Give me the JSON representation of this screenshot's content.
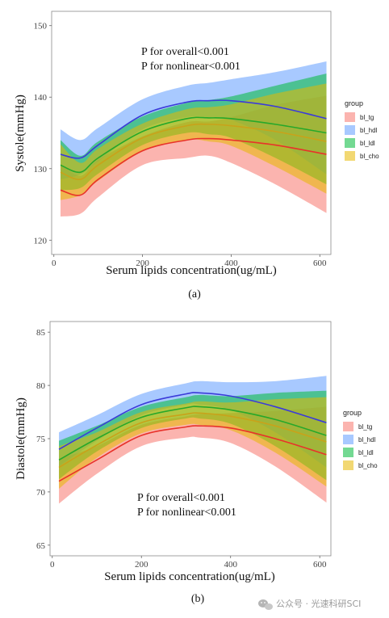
{
  "chart_data": [
    {
      "type": "line",
      "panel_label": "(a)",
      "ylabel": "Systole(mmHg)",
      "xlabel": "Serum lipids concentration(ug/mL)",
      "xlim": [
        -5,
        625
      ],
      "ylim": [
        118,
        152
      ],
      "xticks": [
        0,
        200,
        400,
        600
      ],
      "yticks": [
        120,
        130,
        140,
        150
      ],
      "annotations": [
        "P for overall<0.001",
        "P for nonlinear<0.001"
      ],
      "legend": {
        "title": "group",
        "position": "right"
      },
      "grid": false,
      "series": [
        {
          "name": "bl_tg",
          "color": "#f8766d",
          "x": [
            15,
            60,
            100,
            200,
            300,
            350,
            400,
            500,
            615
          ],
          "y": [
            127,
            126.3,
            128.5,
            132.5,
            134,
            134.2,
            134,
            133.3,
            132
          ],
          "lower": [
            123.3,
            123.7,
            126,
            130.5,
            131.5,
            131.8,
            130.8,
            127.8,
            123.8
          ],
          "upper": [
            130.7,
            129,
            131.2,
            134.5,
            136.5,
            136.6,
            137.2,
            138.9,
            140.2
          ]
        },
        {
          "name": "bl_hdl",
          "color": "#619cff",
          "x": [
            15,
            60,
            100,
            200,
            300,
            350,
            400,
            500,
            615
          ],
          "y": [
            132,
            131.5,
            133.3,
            137.5,
            139.3,
            139.5,
            139.5,
            138.7,
            137
          ],
          "lower": [
            128.5,
            129.2,
            131,
            135.5,
            137.2,
            137.2,
            136.8,
            134,
            129.2
          ],
          "upper": [
            135.5,
            134,
            135.7,
            139.7,
            141.6,
            142,
            142.5,
            143.5,
            145
          ]
        },
        {
          "name": "bl_ldl",
          "color": "#00ba38",
          "x": [
            15,
            60,
            100,
            200,
            300,
            350,
            400,
            500,
            615
          ],
          "y": [
            130.5,
            129.5,
            131.5,
            135.2,
            137,
            137.1,
            137,
            136.2,
            135
          ],
          "lower": [
            127,
            127.3,
            129.3,
            133.3,
            135,
            134.8,
            134.3,
            131.5,
            127.8
          ],
          "upper": [
            134,
            131.8,
            133.8,
            137.3,
            139.2,
            139.6,
            140.1,
            141.6,
            143.3
          ]
        },
        {
          "name": "bl_cho",
          "color": "#e7b800",
          "x": [
            15,
            60,
            100,
            200,
            300,
            350,
            400,
            500,
            615
          ],
          "y": [
            129.5,
            128.5,
            130.5,
            134.3,
            136,
            136.2,
            136,
            135.2,
            133.8
          ],
          "lower": [
            125.6,
            126.3,
            128.3,
            132.4,
            134,
            133.8,
            133.2,
            130.3,
            126.5
          ],
          "upper": [
            133.4,
            130.8,
            132.8,
            136.3,
            138.3,
            138.6,
            139,
            140.5,
            141.9
          ]
        }
      ]
    },
    {
      "type": "line",
      "panel_label": "(b)",
      "ylabel": "Diastole(mmHg)",
      "xlabel": "Serum lipids concentration(ug/mL)",
      "xlim": [
        -5,
        625
      ],
      "ylim": [
        64,
        86
      ],
      "xticks": [
        0,
        200,
        400,
        600
      ],
      "yticks": [
        65,
        70,
        75,
        80,
        85
      ],
      "annotations": [
        "P for overall<0.001",
        "P for nonlinear<0.001"
      ],
      "legend": {
        "title": "group",
        "position": "right"
      },
      "grid": false,
      "series": [
        {
          "name": "bl_tg",
          "color": "#f8766d",
          "x": [
            15,
            100,
            200,
            300,
            330,
            400,
            500,
            615
          ],
          "y": [
            71,
            73,
            75.3,
            76.1,
            76.2,
            76,
            75,
            73.5
          ],
          "lower": [
            68.9,
            71.7,
            74.3,
            75.1,
            75.1,
            74.6,
            72.4,
            69
          ],
          "upper": [
            73.1,
            74.3,
            76.3,
            77.1,
            77.3,
            77.4,
            77.6,
            78
          ]
        },
        {
          "name": "bl_hdl",
          "color": "#619cff",
          "x": [
            15,
            100,
            200,
            300,
            330,
            400,
            500,
            615
          ],
          "y": [
            74,
            76,
            78.2,
            79.2,
            79.3,
            79,
            78,
            76.5
          ],
          "lower": [
            72.4,
            74.8,
            77.2,
            78.2,
            78.2,
            77.7,
            75.6,
            72.3
          ],
          "upper": [
            75.6,
            77.2,
            79.2,
            80.2,
            80.4,
            80.3,
            80.4,
            80.9
          ]
        },
        {
          "name": "bl_ldl",
          "color": "#00ba38",
          "x": [
            15,
            100,
            200,
            300,
            330,
            400,
            500,
            615
          ],
          "y": [
            73,
            75,
            77,
            77.9,
            78,
            77.7,
            76.8,
            75.3
          ],
          "lower": [
            71.2,
            73.8,
            76,
            76.9,
            76.9,
            76.4,
            74.3,
            71.1
          ],
          "upper": [
            74.8,
            76.2,
            78,
            78.9,
            79.1,
            79,
            79.3,
            79.5
          ]
        },
        {
          "name": "bl_cho",
          "color": "#e7b800",
          "x": [
            15,
            100,
            200,
            300,
            330,
            400,
            500,
            615
          ],
          "y": [
            72.3,
            74.4,
            76.5,
            77.3,
            77.4,
            77.1,
            76.2,
            74.7
          ],
          "lower": [
            70.3,
            73.2,
            75.5,
            76.3,
            76.3,
            75.8,
            73.7,
            70.5
          ],
          "upper": [
            74.3,
            75.6,
            77.5,
            78.3,
            78.5,
            78.4,
            78.7,
            78.9
          ]
        }
      ]
    }
  ],
  "watermark": {
    "text": "公众号 · 光速科研SCI",
    "icon": "wechat-icon"
  }
}
